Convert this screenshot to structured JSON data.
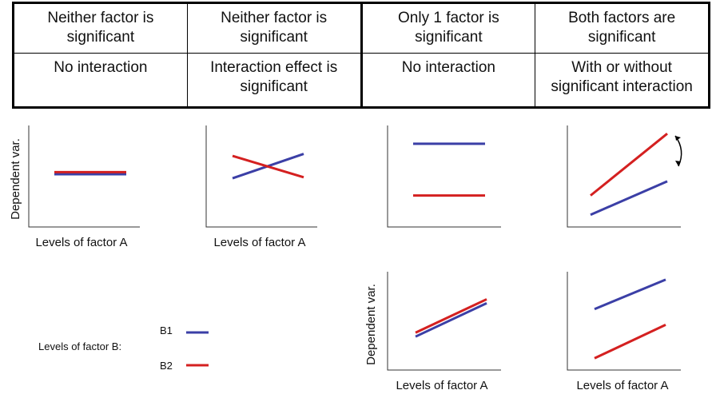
{
  "table": {
    "row1": [
      "Neither factor is significant",
      "Neither factor is significant",
      "Only 1 factor is significant",
      "Both factors are significant"
    ],
    "row2": [
      "No interaction",
      "Interaction effect is significant",
      "No interaction",
      "With or without significant interaction"
    ]
  },
  "axis_labels": {
    "x": "Levels of factor A",
    "y": "Dependent var."
  },
  "legend": {
    "title": "Levels of factor B:",
    "b1": "B1",
    "b2": "B2"
  },
  "colors": {
    "b1": "#3b3fa6",
    "b2": "#d42020"
  },
  "chart_data": [
    {
      "type": "line",
      "panel": "neither-no-interaction",
      "x": [
        1,
        2
      ],
      "series": [
        {
          "name": "B1",
          "values": [
            5.2,
            5.2
          ]
        },
        {
          "name": "B2",
          "values": [
            5.4,
            5.4
          ]
        }
      ]
    },
    {
      "type": "line",
      "panel": "neither-interaction",
      "x": [
        1,
        2
      ],
      "series": [
        {
          "name": "B1",
          "values": [
            4.8,
            7.2
          ]
        },
        {
          "name": "B2",
          "values": [
            7.0,
            4.9
          ]
        }
      ]
    },
    {
      "type": "line",
      "panel": "one-factor",
      "x": [
        1,
        2
      ],
      "series": [
        {
          "name": "B1",
          "values": [
            8.2,
            8.2
          ]
        },
        {
          "name": "B2",
          "values": [
            3.1,
            3.1
          ]
        }
      ]
    },
    {
      "type": "line",
      "panel": "both-interaction",
      "x": [
        1,
        2
      ],
      "series": [
        {
          "name": "B1",
          "values": [
            1.2,
            4.5
          ]
        },
        {
          "name": "B2",
          "values": [
            3.1,
            9.2
          ]
        }
      ]
    },
    {
      "type": "line",
      "panel": "one-factor-alt",
      "x": [
        1,
        2
      ],
      "series": [
        {
          "name": "B1",
          "values": [
            3.4,
            6.8
          ]
        },
        {
          "name": "B2",
          "values": [
            3.8,
            7.2
          ]
        }
      ]
    },
    {
      "type": "line",
      "panel": "both-no-interaction",
      "x": [
        1,
        2
      ],
      "series": [
        {
          "name": "B1",
          "values": [
            6.2,
            9.2
          ]
        },
        {
          "name": "B2",
          "values": [
            1.2,
            4.6
          ]
        }
      ]
    }
  ]
}
